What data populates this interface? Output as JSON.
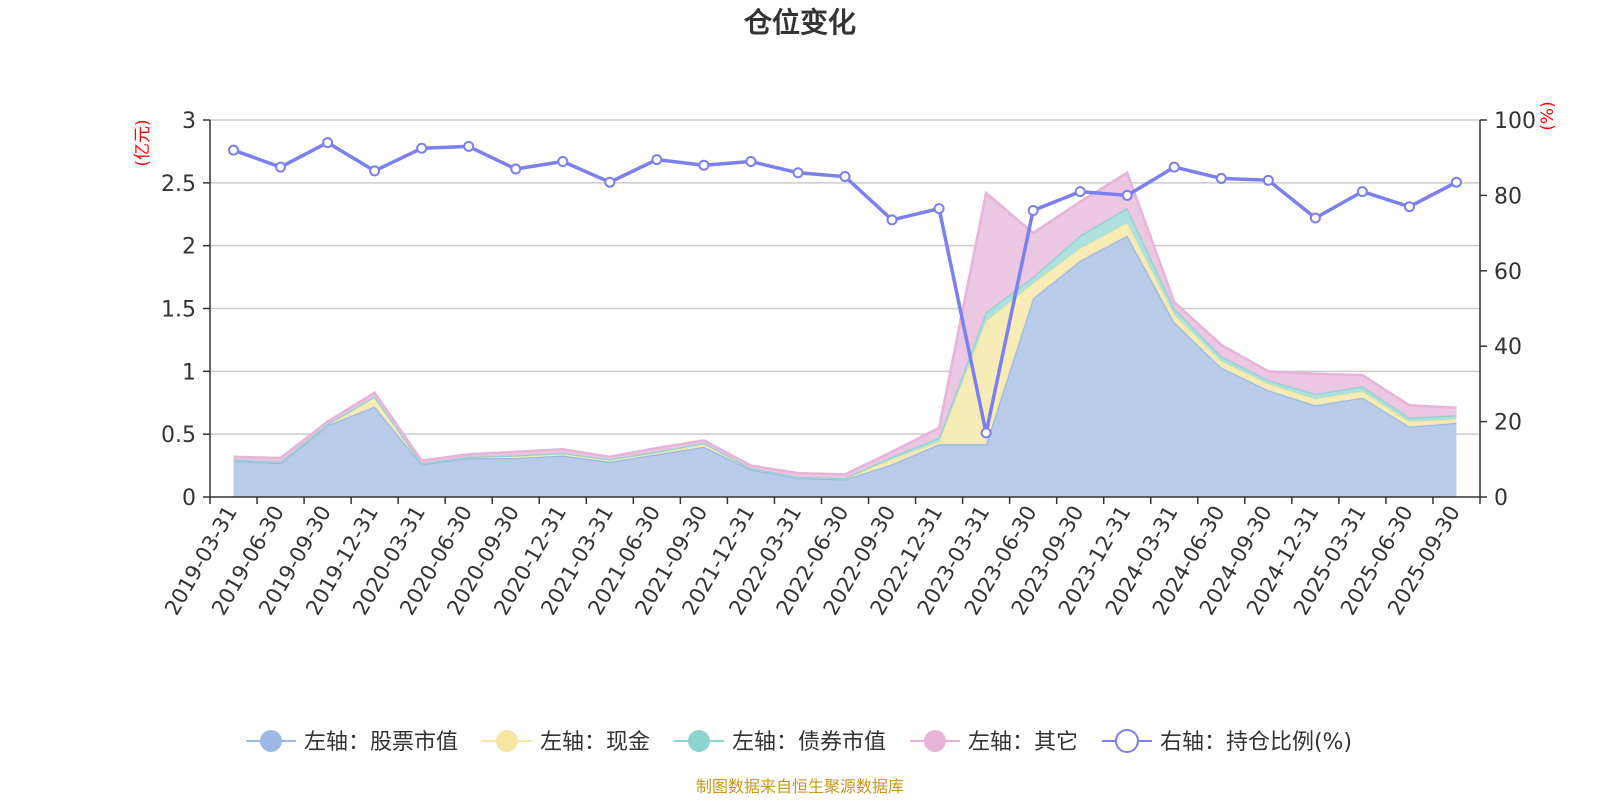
{
  "chart_data": {
    "type": "area",
    "title": "仓位变化",
    "left_axis": {
      "unit": "(亿元)",
      "ylim": [
        0,
        3
      ],
      "ticks": [
        "0",
        "0.5",
        "1",
        "1.5",
        "2",
        "2.5",
        "3"
      ]
    },
    "right_axis": {
      "unit": "(%)",
      "ylim": [
        0,
        100
      ],
      "ticks": [
        "0",
        "20",
        "40",
        "60",
        "80",
        "100"
      ]
    },
    "categories": [
      "2019-03-31",
      "2019-06-30",
      "2019-09-30",
      "2019-12-31",
      "2020-03-31",
      "2020-06-30",
      "2020-09-30",
      "2020-12-31",
      "2021-03-31",
      "2021-06-30",
      "2021-09-30",
      "2021-12-31",
      "2022-03-31",
      "2022-06-30",
      "2022-09-30",
      "2022-12-31",
      "2023-03-31",
      "2023-06-30",
      "2023-09-30",
      "2023-12-31",
      "2024-03-31",
      "2024-06-30",
      "2024-09-30",
      "2024-12-31",
      "2025-03-31",
      "2025-06-30",
      "2025-09-30"
    ],
    "series": [
      {
        "name": "左轴：股票市值",
        "axis": "left",
        "stacked": true,
        "color": "#9db8e3",
        "fill": "#b4c9e8",
        "values": [
          0.29,
          0.27,
          0.57,
          0.72,
          0.26,
          0.31,
          0.31,
          0.33,
          0.28,
          0.34,
          0.4,
          0.22,
          0.15,
          0.14,
          0.26,
          0.42,
          0.42,
          1.58,
          1.88,
          2.08,
          1.39,
          1.03,
          0.85,
          0.73,
          0.79,
          0.56,
          0.59
        ]
      },
      {
        "name": "左轴：现金",
        "axis": "left",
        "stacked": true,
        "color": "#f5e6a0",
        "fill": "#f7eab2",
        "values": [
          0.01,
          0.01,
          0.01,
          0.08,
          0.01,
          0.01,
          0.02,
          0.02,
          0.02,
          0.02,
          0.03,
          0.01,
          0.01,
          0.01,
          0.04,
          0.02,
          0.98,
          0.12,
          0.1,
          0.1,
          0.06,
          0.05,
          0.05,
          0.05,
          0.05,
          0.04,
          0.03
        ]
      },
      {
        "name": "左轴：债券市值",
        "axis": "left",
        "stacked": true,
        "color": "#8fd3d1",
        "fill": "#a9dedd",
        "values": [
          0,
          0,
          0,
          0,
          0,
          0,
          0,
          0,
          0,
          0,
          0,
          0,
          0,
          0,
          0.02,
          0.03,
          0.07,
          0.05,
          0.1,
          0.12,
          0.05,
          0.04,
          0.03,
          0.04,
          0.04,
          0.03,
          0.03
        ]
      },
      {
        "name": "左轴：其它",
        "axis": "left",
        "stacked": true,
        "color": "#e6b3d9",
        "fill": "#eac4df",
        "values": [
          0.02,
          0.03,
          0.02,
          0.03,
          0.02,
          0.02,
          0.03,
          0.03,
          0.02,
          0.03,
          0.02,
          0.02,
          0.03,
          0.03,
          0.04,
          0.08,
          0.95,
          0.35,
          0.27,
          0.28,
          0.05,
          0.09,
          0.07,
          0.16,
          0.09,
          0.1,
          0.06
        ]
      },
      {
        "name": "右轴：持仓比例(%)",
        "axis": "right",
        "stacked": false,
        "color": "#7b7ff0",
        "values": [
          92,
          87.5,
          94,
          86.5,
          92.5,
          93,
          87,
          89,
          83.5,
          89.5,
          88,
          89,
          86,
          85,
          73.5,
          76.5,
          17,
          76,
          81,
          80,
          87.5,
          84.5,
          84,
          74,
          81,
          77,
          83.5
        ]
      }
    ],
    "legend": {
      "position": "bottom"
    },
    "grid": true,
    "source": "制图数据来自恒生聚源数据库"
  }
}
